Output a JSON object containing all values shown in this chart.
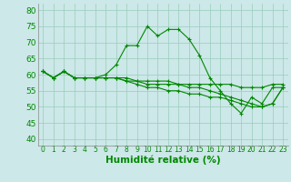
{
  "xlabel": "Humidité relative (%)",
  "xlim": [
    -0.5,
    23.5
  ],
  "ylim": [
    38,
    82
  ],
  "yticks": [
    40,
    45,
    50,
    55,
    60,
    65,
    70,
    75,
    80
  ],
  "xticks": [
    0,
    1,
    2,
    3,
    4,
    5,
    6,
    7,
    8,
    9,
    10,
    11,
    12,
    13,
    14,
    15,
    16,
    17,
    18,
    19,
    20,
    21,
    22,
    23
  ],
  "background_color": "#cce8e8",
  "grid_color": "#99ccbb",
  "line_color": "#008800",
  "lines": [
    [
      61,
      59,
      61,
      59,
      59,
      59,
      60,
      63,
      69,
      69,
      75,
      72,
      74,
      74,
      71,
      66,
      59,
      55,
      51,
      48,
      53,
      51,
      56,
      56
    ],
    [
      61,
      59,
      61,
      59,
      59,
      59,
      59,
      59,
      59,
      58,
      58,
      58,
      58,
      57,
      57,
      57,
      57,
      57,
      57,
      56,
      56,
      56,
      57,
      57
    ],
    [
      61,
      59,
      61,
      59,
      59,
      59,
      59,
      59,
      58,
      58,
      57,
      57,
      57,
      57,
      56,
      56,
      55,
      54,
      53,
      52,
      51,
      50,
      51,
      56
    ],
    [
      61,
      59,
      61,
      59,
      59,
      59,
      59,
      59,
      58,
      57,
      56,
      56,
      55,
      55,
      54,
      54,
      53,
      53,
      52,
      51,
      50,
      50,
      51,
      56
    ]
  ]
}
